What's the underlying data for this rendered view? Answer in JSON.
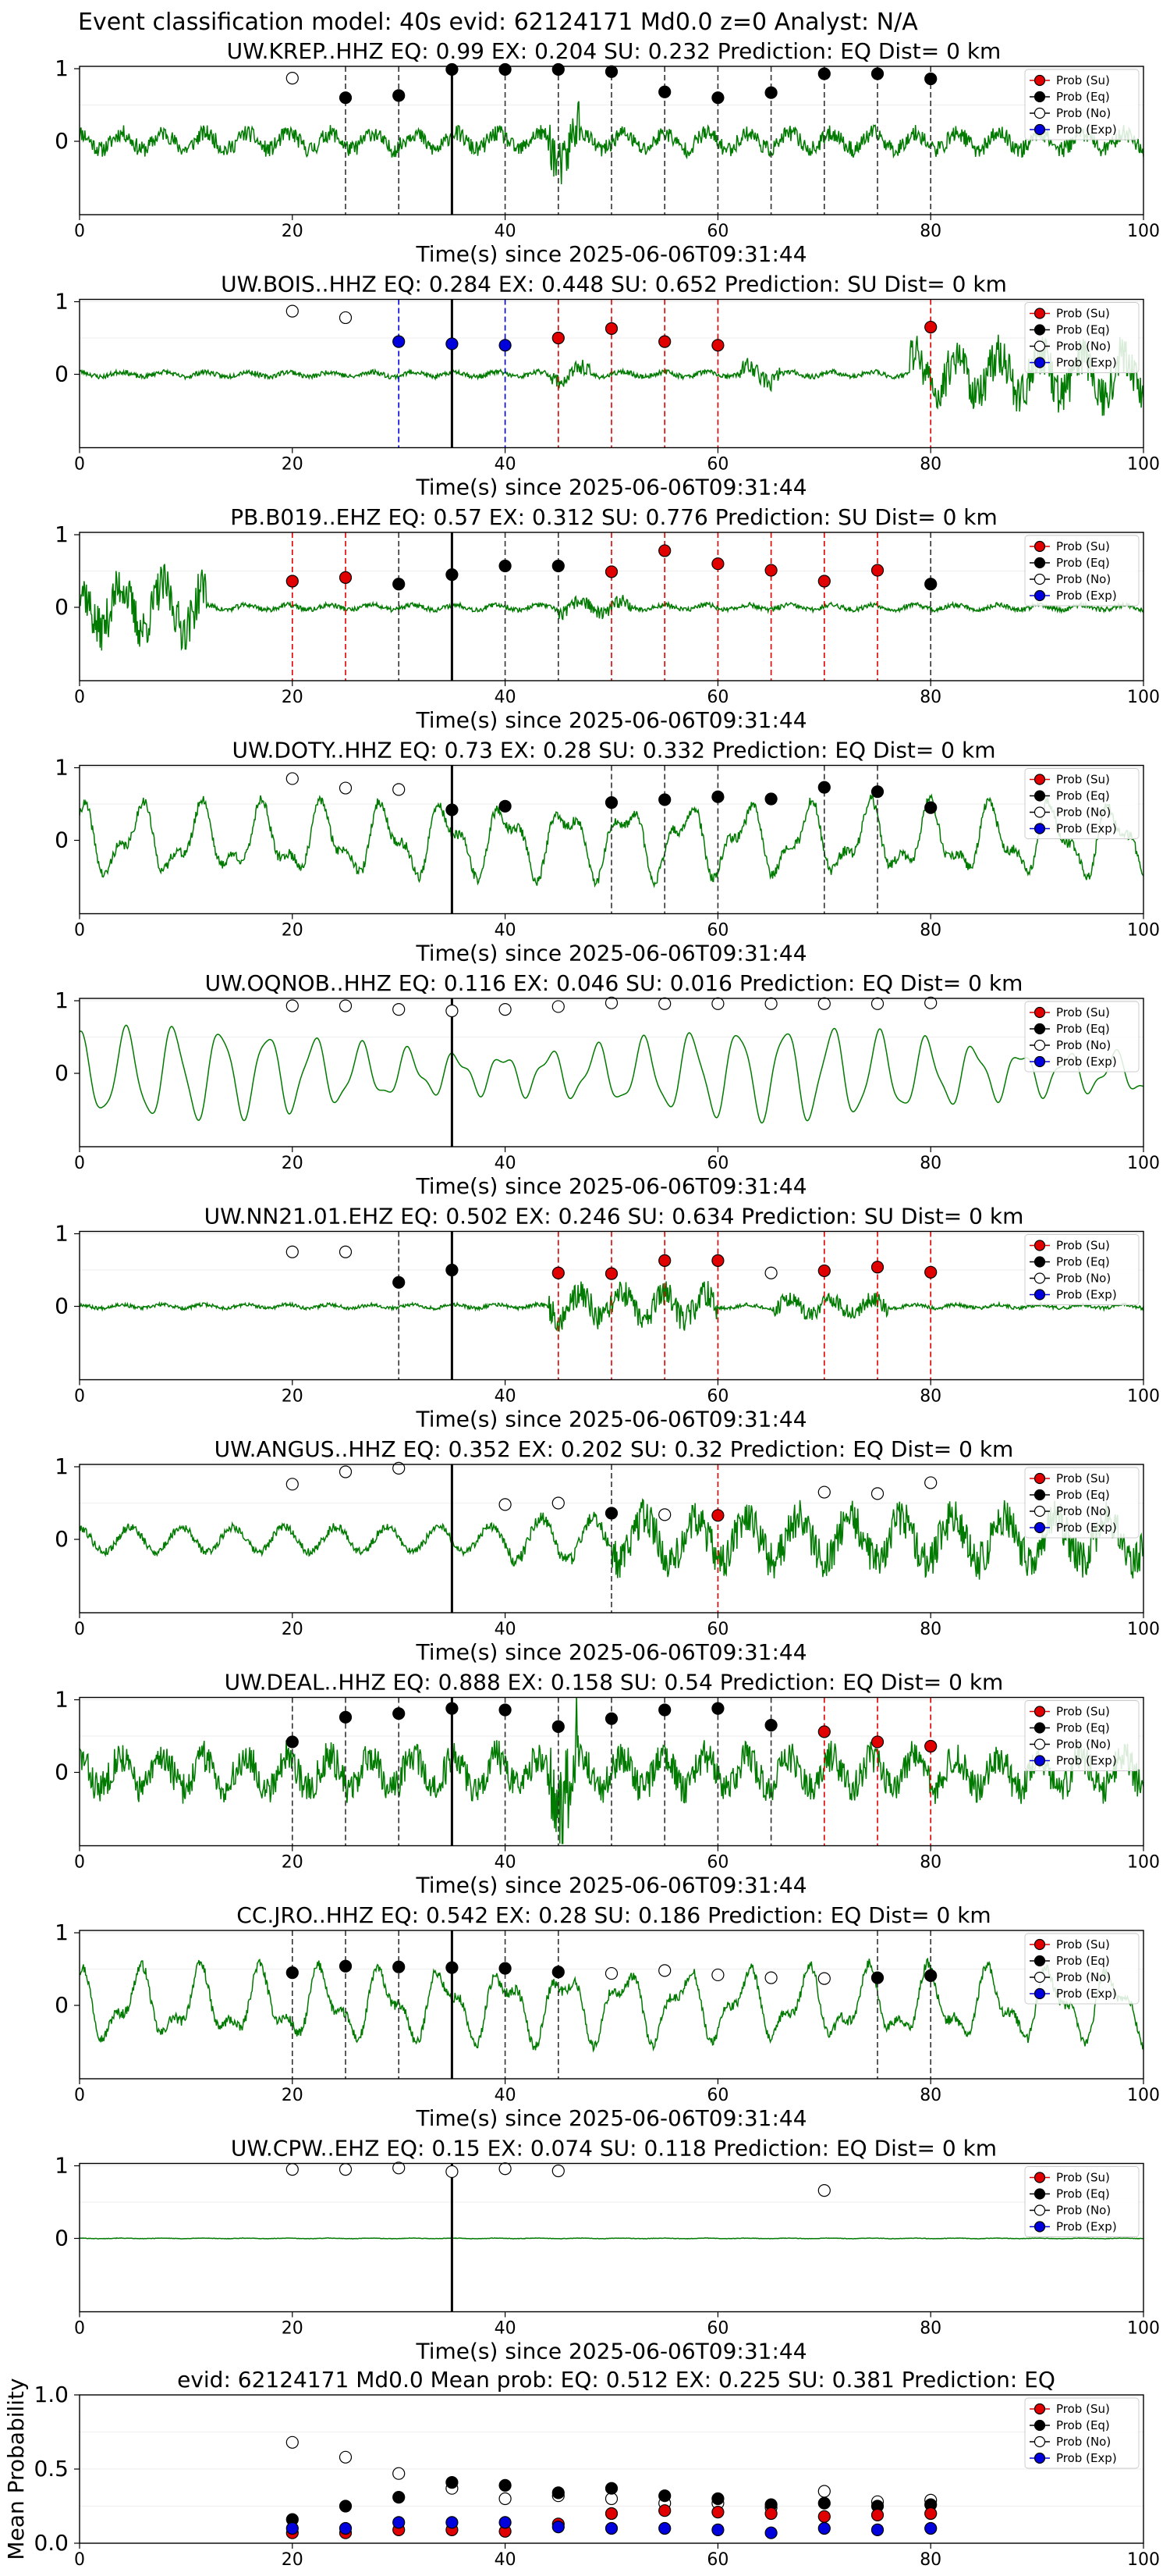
{
  "suptitle": "Event classification model: 40s evid: 62124171 Md0.0 z=0 Analyst: N/A",
  "xlabel": "Time(s) since 2025-06-06T09:31:44",
  "legend": [
    "Prob (Su)",
    "Prob (Eq)",
    "Prob (No)",
    "Prob (Exp)"
  ],
  "colors": {
    "su": "#e00000",
    "eq": "#000000",
    "no": "#ffffff",
    "exp": "#0000dd",
    "trace": "#007a00"
  },
  "xticks": [
    0,
    20,
    40,
    60,
    80,
    100
  ],
  "yticks": [
    0,
    1
  ],
  "chart_data": [
    {
      "type": "line",
      "title": "UW.KREP..HHZ   EQ: 0.99  EX: 0.204  SU: 0.232   Prediction: EQ    Dist= 0 km",
      "seed": 11,
      "amp": 0.25,
      "style": "mixed",
      "vlines": [
        [
          25,
          "eq"
        ],
        [
          30,
          "eq"
        ],
        [
          35,
          "pick"
        ],
        [
          40,
          "eq"
        ],
        [
          45,
          "eq"
        ],
        [
          50,
          "eq"
        ],
        [
          55,
          "eq"
        ],
        [
          60,
          "eq"
        ],
        [
          65,
          "eq"
        ],
        [
          70,
          "eq"
        ],
        [
          75,
          "eq"
        ],
        [
          80,
          "eq"
        ]
      ],
      "points": [
        [
          20,
          0.87,
          "no"
        ],
        [
          25,
          0.6,
          "eq"
        ],
        [
          30,
          0.63,
          "eq"
        ],
        [
          35,
          0.99,
          "eq"
        ],
        [
          40,
          0.99,
          "eq"
        ],
        [
          45,
          0.99,
          "eq"
        ],
        [
          50,
          0.96,
          "eq"
        ],
        [
          55,
          0.68,
          "eq"
        ],
        [
          60,
          0.6,
          "eq"
        ],
        [
          65,
          0.67,
          "eq"
        ],
        [
          70,
          0.93,
          "eq"
        ],
        [
          75,
          0.93,
          "eq"
        ],
        [
          80,
          0.86,
          "eq"
        ]
      ]
    },
    {
      "type": "line",
      "title": "UW.BOIS..HHZ   EQ: 0.284  EX: 0.448  SU: 0.652   Prediction: SU    Dist= 0 km",
      "seed": 23,
      "amp": 0.3,
      "style": "burst",
      "vlines": [
        [
          30,
          "exp"
        ],
        [
          35,
          "pick"
        ],
        [
          40,
          "exp"
        ],
        [
          45,
          "su"
        ],
        [
          50,
          "su"
        ],
        [
          55,
          "su"
        ],
        [
          60,
          "su"
        ],
        [
          80,
          "su"
        ]
      ],
      "points": [
        [
          20,
          0.87,
          "no"
        ],
        [
          25,
          0.78,
          "no"
        ],
        [
          30,
          0.45,
          "exp"
        ],
        [
          35,
          0.42,
          "exp"
        ],
        [
          40,
          0.4,
          "exp"
        ],
        [
          45,
          0.5,
          "su"
        ],
        [
          50,
          0.63,
          "su"
        ],
        [
          55,
          0.45,
          "su"
        ],
        [
          60,
          0.4,
          "su"
        ],
        [
          80,
          0.65,
          "su"
        ]
      ]
    },
    {
      "type": "line",
      "title": "PB.B019..EHZ   EQ: 0.57  EX: 0.312  SU: 0.776   Prediction: SU    Dist= 0 km",
      "seed": 37,
      "amp": 0.15,
      "style": "early",
      "vlines": [
        [
          20,
          "su"
        ],
        [
          25,
          "su"
        ],
        [
          30,
          "eq"
        ],
        [
          35,
          "pick"
        ],
        [
          40,
          "eq"
        ],
        [
          45,
          "eq"
        ],
        [
          50,
          "su"
        ],
        [
          55,
          "su"
        ],
        [
          60,
          "su"
        ],
        [
          65,
          "su"
        ],
        [
          70,
          "su"
        ],
        [
          75,
          "su"
        ],
        [
          80,
          "eq"
        ]
      ],
      "points": [
        [
          20,
          0.36,
          "su"
        ],
        [
          25,
          0.41,
          "su"
        ],
        [
          30,
          0.32,
          "eq"
        ],
        [
          35,
          0.45,
          "eq"
        ],
        [
          40,
          0.57,
          "eq"
        ],
        [
          45,
          0.57,
          "eq"
        ],
        [
          50,
          0.49,
          "su"
        ],
        [
          55,
          0.78,
          "su"
        ],
        [
          60,
          0.6,
          "su"
        ],
        [
          65,
          0.51,
          "su"
        ],
        [
          70,
          0.36,
          "su"
        ],
        [
          75,
          0.51,
          "su"
        ],
        [
          80,
          0.32,
          "eq"
        ]
      ]
    },
    {
      "type": "line",
      "title": "UW.DOTY..HHZ   EQ: 0.73  EX: 0.28  SU: 0.332   Prediction: EQ    Dist= 0 km",
      "seed": 41,
      "amp": 0.55,
      "style": "wave",
      "vlines": [
        [
          35,
          "pick"
        ],
        [
          50,
          "eq"
        ],
        [
          55,
          "eq"
        ],
        [
          60,
          "eq"
        ],
        [
          70,
          "eq"
        ],
        [
          75,
          "eq"
        ]
      ],
      "points": [
        [
          20,
          0.85,
          "no"
        ],
        [
          25,
          0.72,
          "no"
        ],
        [
          30,
          0.7,
          "no"
        ],
        [
          35,
          0.42,
          "eq"
        ],
        [
          40,
          0.47,
          "eq"
        ],
        [
          50,
          0.52,
          "eq"
        ],
        [
          55,
          0.56,
          "eq"
        ],
        [
          60,
          0.6,
          "eq"
        ],
        [
          65,
          0.57,
          "eq"
        ],
        [
          70,
          0.73,
          "eq"
        ],
        [
          75,
          0.67,
          "eq"
        ],
        [
          80,
          0.45,
          "eq"
        ]
      ]
    },
    {
      "type": "line",
      "title": "UW.OQNOB..HHZ   EQ: 0.116  EX: 0.046  SU: 0.016   Prediction: EQ    Dist= 0 km",
      "seed": 53,
      "amp": 0.6,
      "style": "smooth",
      "vlines": [
        [
          35,
          "pick"
        ]
      ],
      "points": [
        [
          20,
          0.93,
          "no"
        ],
        [
          25,
          0.93,
          "no"
        ],
        [
          30,
          0.88,
          "no"
        ],
        [
          35,
          0.86,
          "no"
        ],
        [
          40,
          0.88,
          "no"
        ],
        [
          45,
          0.92,
          "no"
        ],
        [
          50,
          0.97,
          "no"
        ],
        [
          55,
          0.96,
          "no"
        ],
        [
          60,
          0.96,
          "no"
        ],
        [
          65,
          0.96,
          "no"
        ],
        [
          70,
          0.96,
          "no"
        ],
        [
          75,
          0.96,
          "no"
        ],
        [
          80,
          0.97,
          "no"
        ]
      ]
    },
    {
      "type": "line",
      "title": "UW.NN21.01.EHZ   EQ: 0.502  EX: 0.246  SU: 0.634   Prediction: SU    Dist= 0 km",
      "seed": 67,
      "amp": 0.12,
      "style": "middle",
      "vlines": [
        [
          30,
          "eq"
        ],
        [
          35,
          "pick"
        ],
        [
          45,
          "su"
        ],
        [
          50,
          "su"
        ],
        [
          55,
          "su"
        ],
        [
          60,
          "su"
        ],
        [
          70,
          "su"
        ],
        [
          75,
          "su"
        ],
        [
          80,
          "su"
        ]
      ],
      "points": [
        [
          20,
          0.75,
          "no"
        ],
        [
          25,
          0.75,
          "no"
        ],
        [
          30,
          0.33,
          "eq"
        ],
        [
          35,
          0.5,
          "eq"
        ],
        [
          45,
          0.46,
          "su"
        ],
        [
          50,
          0.45,
          "su"
        ],
        [
          55,
          0.63,
          "su"
        ],
        [
          60,
          0.63,
          "su"
        ],
        [
          65,
          0.46,
          "no"
        ],
        [
          70,
          0.49,
          "su"
        ],
        [
          75,
          0.54,
          "su"
        ],
        [
          80,
          0.47,
          "su"
        ]
      ]
    },
    {
      "type": "line",
      "title": "UW.ANGUS..HHZ   EQ: 0.352  EX: 0.202  SU: 0.32   Prediction: EQ    Dist= 0 km",
      "seed": 79,
      "amp": 0.45,
      "style": "rising",
      "vlines": [
        [
          35,
          "pick"
        ],
        [
          50,
          "eq"
        ],
        [
          60,
          "su"
        ]
      ],
      "points": [
        [
          20,
          0.76,
          "no"
        ],
        [
          25,
          0.93,
          "no"
        ],
        [
          30,
          0.98,
          "no"
        ],
        [
          40,
          0.48,
          "no"
        ],
        [
          45,
          0.5,
          "no"
        ],
        [
          50,
          0.36,
          "eq"
        ],
        [
          55,
          0.34,
          "no"
        ],
        [
          60,
          0.33,
          "su"
        ],
        [
          70,
          0.65,
          "no"
        ],
        [
          75,
          0.63,
          "no"
        ],
        [
          80,
          0.78,
          "no"
        ]
      ]
    },
    {
      "type": "line",
      "title": "UW.DEAL..HHZ   EQ: 0.888  EX: 0.158  SU: 0.54   Prediction: EQ    Dist= 0 km",
      "seed": 83,
      "amp": 0.5,
      "style": "mixed",
      "vlines": [
        [
          20,
          "eq"
        ],
        [
          25,
          "eq"
        ],
        [
          30,
          "eq"
        ],
        [
          35,
          "pick"
        ],
        [
          40,
          "eq"
        ],
        [
          45,
          "eq"
        ],
        [
          50,
          "eq"
        ],
        [
          55,
          "eq"
        ],
        [
          60,
          "eq"
        ],
        [
          65,
          "eq"
        ],
        [
          70,
          "su"
        ],
        [
          75,
          "su"
        ],
        [
          80,
          "su"
        ]
      ],
      "points": [
        [
          20,
          0.42,
          "eq"
        ],
        [
          25,
          0.76,
          "eq"
        ],
        [
          30,
          0.81,
          "eq"
        ],
        [
          35,
          0.88,
          "eq"
        ],
        [
          40,
          0.86,
          "eq"
        ],
        [
          45,
          0.63,
          "eq"
        ],
        [
          50,
          0.74,
          "eq"
        ],
        [
          55,
          0.86,
          "eq"
        ],
        [
          60,
          0.88,
          "eq"
        ],
        [
          65,
          0.65,
          "eq"
        ],
        [
          70,
          0.56,
          "su"
        ],
        [
          75,
          0.42,
          "su"
        ],
        [
          80,
          0.36,
          "su"
        ]
      ]
    },
    {
      "type": "line",
      "title": "CC.JRO..HHZ   EQ: 0.542  EX: 0.28  SU: 0.186   Prediction: EQ    Dist= 0 km",
      "seed": 97,
      "amp": 0.55,
      "style": "wave",
      "vlines": [
        [
          20,
          "eq"
        ],
        [
          25,
          "eq"
        ],
        [
          30,
          "eq"
        ],
        [
          35,
          "pick"
        ],
        [
          40,
          "eq"
        ],
        [
          45,
          "eq"
        ],
        [
          75,
          "eq"
        ],
        [
          80,
          "eq"
        ]
      ],
      "points": [
        [
          20,
          0.45,
          "eq"
        ],
        [
          25,
          0.54,
          "eq"
        ],
        [
          30,
          0.53,
          "eq"
        ],
        [
          35,
          0.52,
          "eq"
        ],
        [
          40,
          0.51,
          "eq"
        ],
        [
          45,
          0.46,
          "eq"
        ],
        [
          50,
          0.44,
          "no"
        ],
        [
          55,
          0.48,
          "no"
        ],
        [
          60,
          0.42,
          "no"
        ],
        [
          65,
          0.38,
          "no"
        ],
        [
          70,
          0.37,
          "no"
        ],
        [
          75,
          0.38,
          "eq"
        ],
        [
          80,
          0.41,
          "eq"
        ]
      ]
    },
    {
      "type": "line",
      "title": "UW.CPW..EHZ   EQ: 0.15  EX: 0.074  SU: 0.118   Prediction: EQ    Dist= 0 km",
      "seed": 101,
      "amp": 0.015,
      "style": "flat",
      "vlines": [
        [
          35,
          "pick"
        ]
      ],
      "points": [
        [
          20,
          0.95,
          "no"
        ],
        [
          25,
          0.95,
          "no"
        ],
        [
          30,
          0.97,
          "no"
        ],
        [
          35,
          0.92,
          "no"
        ],
        [
          40,
          0.96,
          "no"
        ],
        [
          45,
          0.93,
          "no"
        ],
        [
          70,
          0.66,
          "no"
        ]
      ]
    },
    {
      "type": "scatter",
      "title": "evid: 62124171  Md0.0   Mean prob:   EQ: 0.512  EX: 0.225  SU: 0.381   Prediction: EQ",
      "ylabel": "Mean Probability",
      "yticks": [
        "0.0",
        "0.5",
        "1.0"
      ],
      "ylim": [
        0,
        1
      ],
      "series": {
        "no": [
          [
            20,
            0.68
          ],
          [
            25,
            0.58
          ],
          [
            30,
            0.47
          ],
          [
            35,
            0.37
          ],
          [
            40,
            0.3
          ],
          [
            45,
            0.32
          ],
          [
            50,
            0.3
          ],
          [
            55,
            0.27
          ],
          [
            60,
            0.27
          ],
          [
            65,
            0.24
          ],
          [
            70,
            0.35
          ],
          [
            75,
            0.28
          ],
          [
            80,
            0.29
          ]
        ],
        "eq": [
          [
            20,
            0.16
          ],
          [
            25,
            0.25
          ],
          [
            30,
            0.31
          ],
          [
            35,
            0.41
          ],
          [
            40,
            0.39
          ],
          [
            45,
            0.34
          ],
          [
            50,
            0.37
          ],
          [
            55,
            0.32
          ],
          [
            60,
            0.3
          ],
          [
            65,
            0.26
          ],
          [
            70,
            0.27
          ],
          [
            75,
            0.25
          ],
          [
            80,
            0.26
          ]
        ],
        "su": [
          [
            20,
            0.07
          ],
          [
            25,
            0.07
          ],
          [
            30,
            0.09
          ],
          [
            35,
            0.09
          ],
          [
            40,
            0.08
          ],
          [
            45,
            0.13
          ],
          [
            50,
            0.2
          ],
          [
            55,
            0.22
          ],
          [
            60,
            0.21
          ],
          [
            65,
            0.2
          ],
          [
            70,
            0.18
          ],
          [
            75,
            0.19
          ],
          [
            80,
            0.2
          ]
        ],
        "exp": [
          [
            20,
            0.1
          ],
          [
            25,
            0.1
          ],
          [
            30,
            0.14
          ],
          [
            35,
            0.14
          ],
          [
            40,
            0.14
          ],
          [
            45,
            0.11
          ],
          [
            50,
            0.1
          ],
          [
            55,
            0.1
          ],
          [
            60,
            0.09
          ],
          [
            65,
            0.07
          ],
          [
            70,
            0.1
          ],
          [
            75,
            0.09
          ],
          [
            80,
            0.1
          ]
        ]
      }
    }
  ]
}
